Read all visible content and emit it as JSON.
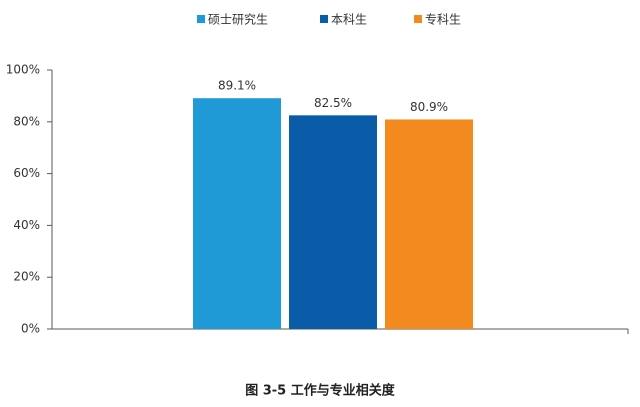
{
  "chart_data": {
    "type": "bar",
    "categories": [
      null
    ],
    "series": [
      {
        "name": "硕士研究生",
        "color": "#1f9ad6",
        "values": [
          89.1
        ],
        "value_labels": [
          "89.1%"
        ]
      },
      {
        "name": "本科生",
        "color": "#0b5ca8",
        "values": [
          82.5
        ],
        "value_labels": [
          "82.5%"
        ]
      },
      {
        "name": "专科生",
        "color": "#f28a20",
        "values": [
          80.9
        ],
        "value_labels": [
          "80.9%"
        ]
      }
    ],
    "ylim": [
      0,
      100
    ],
    "yticks": [
      {
        "value": 0,
        "label": "0%"
      },
      {
        "value": 20,
        "label": "20%"
      },
      {
        "value": 40,
        "label": "40%"
      },
      {
        "value": 60,
        "label": "60%"
      },
      {
        "value": 80,
        "label": "80%"
      },
      {
        "value": 100,
        "label": "100%"
      }
    ],
    "grid": false,
    "legend": "top",
    "caption": "图 3-5  工作与专业相关度"
  }
}
